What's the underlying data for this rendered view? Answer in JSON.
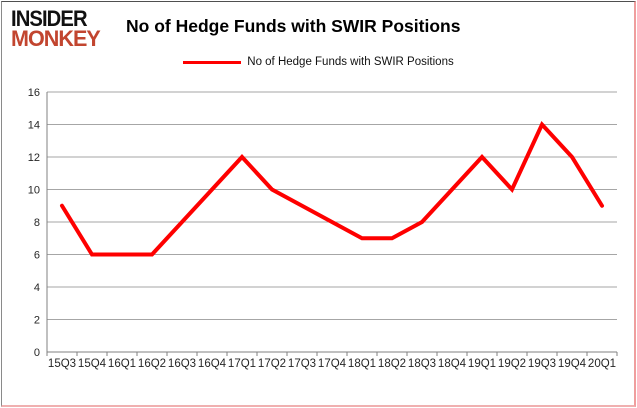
{
  "logo": {
    "line1": "INSIDER",
    "line2": "MONKEY"
  },
  "header": {
    "title": "No of Hedge Funds with SWIR Positions"
  },
  "legend": {
    "label": "No of Hedge Funds with SWIR Positions"
  },
  "colors": {
    "line": "#fe0000",
    "logo_text": "#111111",
    "logo_accent": "#c2452f",
    "gridline": "#a6a6a6",
    "axis": "#808080",
    "tick_label": "#262626",
    "frame": "#f0a0a0"
  },
  "chart_data": {
    "type": "line",
    "title": "No of Hedge Funds with SWIR Positions",
    "categories": [
      "15Q3",
      "15Q4",
      "16Q1",
      "16Q2",
      "16Q3",
      "16Q4",
      "17Q1",
      "17Q2",
      "17Q3",
      "17Q4",
      "18Q1",
      "18Q2",
      "18Q3",
      "18Q4",
      "19Q1",
      "19Q2",
      "19Q3",
      "19Q4",
      "20Q1"
    ],
    "series": [
      {
        "name": "No of Hedge Funds with SWIR Positions",
        "values": [
          9,
          6,
          6,
          6,
          8,
          10,
          12,
          10,
          9,
          8,
          7,
          7,
          8,
          10,
          12,
          10,
          14,
          12,
          9
        ]
      }
    ],
    "xlabel": "",
    "ylabel": "",
    "ylim": [
      0,
      16
    ],
    "ytick_step": 2,
    "grid": true,
    "legend_position": "top-center"
  }
}
